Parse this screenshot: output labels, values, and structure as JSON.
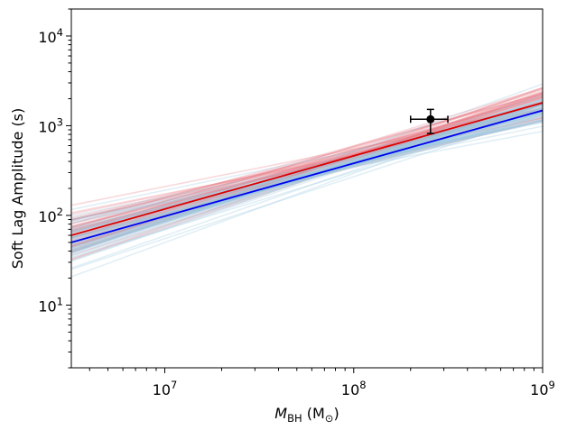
{
  "chart_data": {
    "type": "line",
    "title": "",
    "xlabel_main": "M",
    "xlabel_sub": "BH",
    "xlabel_unit_open": " (M",
    "xlabel_unit_sub": "⊙",
    "xlabel_unit_close": ")",
    "ylabel": "Soft Lag Amplitude (s)",
    "xscale": "log",
    "yscale": "log",
    "xlim": [
      3200000.0,
      1000000000.0
    ],
    "ylim": [
      2,
      20000
    ],
    "x_ticks": [
      {
        "value": 10000000.0,
        "base": "10",
        "exp": "7"
      },
      {
        "value": 100000000.0,
        "base": "10",
        "exp": "8"
      },
      {
        "value": 1000000000.0,
        "base": "10",
        "exp": "9"
      }
    ],
    "y_ticks": [
      {
        "value": 10,
        "base": "10",
        "exp": "1"
      },
      {
        "value": 100,
        "base": "10",
        "exp": "2"
      },
      {
        "value": 1000,
        "base": "10",
        "exp": "3"
      },
      {
        "value": 10000,
        "base": "10",
        "exp": "4"
      }
    ],
    "series": [
      {
        "name": "Best fit (red)",
        "color": "#dd0000",
        "x": [
          3200000.0,
          1000000000.0
        ],
        "y": [
          60,
          1800
        ]
      },
      {
        "name": "Best fit (blue)",
        "color": "#0000ee",
        "x": [
          3200000.0,
          1000000000.0
        ],
        "y": [
          50,
          1480
        ]
      }
    ],
    "samples": [
      {
        "name": "Posterior samples (red)",
        "color": "#e8828a",
        "opacity": 0.3,
        "seed": 7,
        "count": 60,
        "center_y0": 60,
        "center_y1": 1800
      },
      {
        "name": "Posterior samples (blue)",
        "color": "#9cc9e0",
        "opacity": 0.3,
        "seed": 13,
        "count": 60,
        "center_y0": 50,
        "center_y1": 1480
      }
    ],
    "point": {
      "x": 255000000.0,
      "y": 1180,
      "xerr": [
        200000000.0,
        315000000.0
      ],
      "yerr": [
        820,
        1520
      ],
      "color": "#000000"
    }
  }
}
